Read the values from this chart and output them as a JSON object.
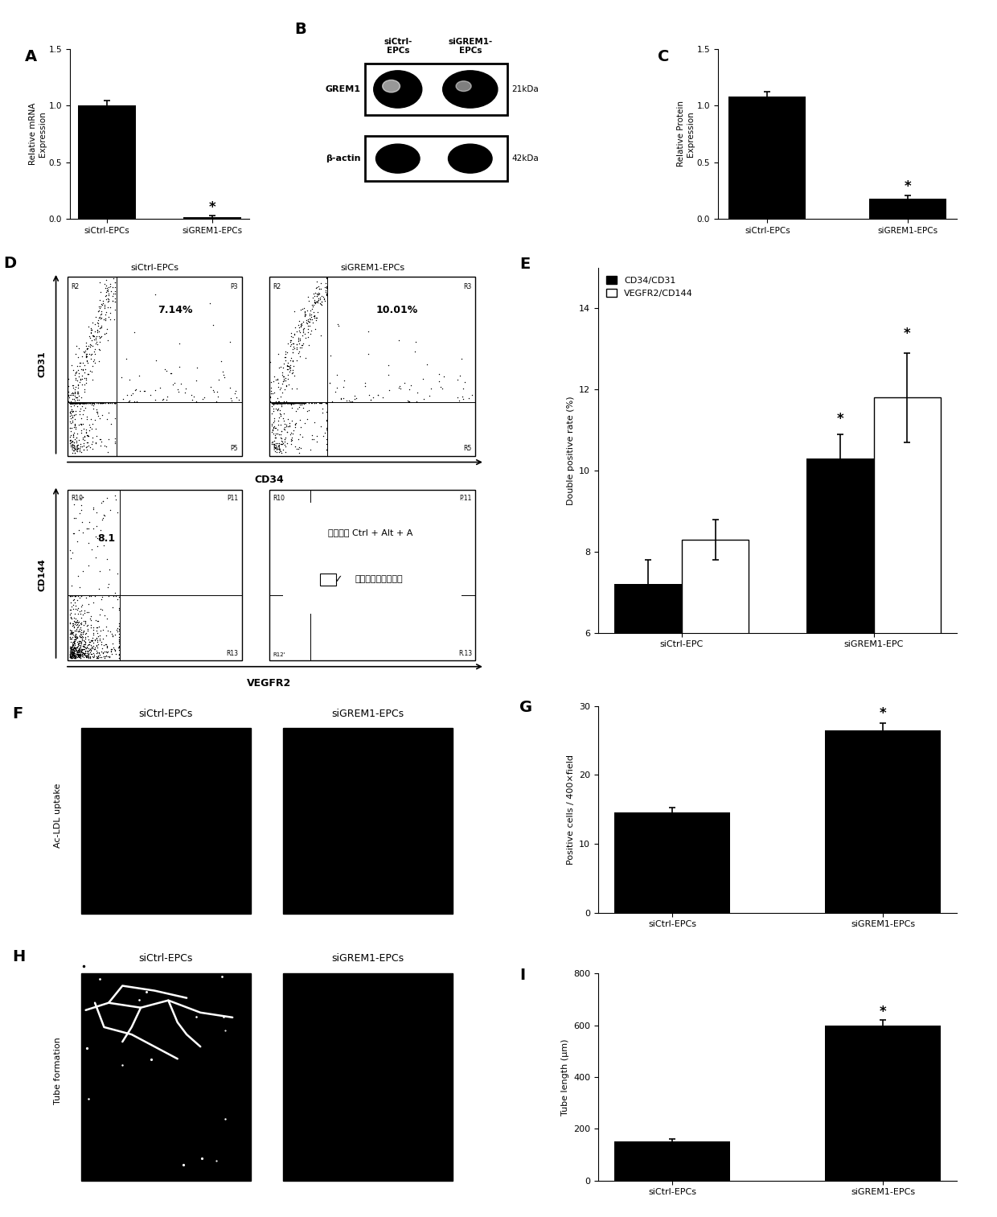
{
  "panel_A": {
    "categories": [
      "siCtrl-EPCs",
      "siGREM1-EPCs"
    ],
    "values": [
      1.0,
      0.02
    ],
    "errors": [
      0.04,
      0.01
    ],
    "ylabel": "Relative mRNA\nExpression",
    "ylim": [
      0,
      1.5
    ],
    "yticks": [
      0.0,
      0.5,
      1.0,
      1.5
    ],
    "bar_color": "#000000"
  },
  "panel_C": {
    "categories": [
      "siCtrl-EPCs",
      "siGREM1-EPCs"
    ],
    "values": [
      1.08,
      0.18
    ],
    "errors": [
      0.04,
      0.03
    ],
    "ylabel": "Relative Protein\nExpression",
    "ylim": [
      0,
      1.5
    ],
    "yticks": [
      0.0,
      0.5,
      1.0,
      1.5
    ],
    "bar_color": "#000000"
  },
  "panel_E": {
    "categories": [
      "siCtrl-EPC",
      "siGREM1-EPC"
    ],
    "values_black": [
      7.2,
      10.3
    ],
    "errors_black": [
      0.6,
      0.6
    ],
    "values_white": [
      8.3,
      11.8
    ],
    "errors_white": [
      0.5,
      1.1
    ],
    "ylabel": "Double positive rate (%)",
    "ylim": [
      6,
      15
    ],
    "yticks": [
      6,
      8,
      10,
      12,
      14
    ],
    "legend_black": "CD34/CD31",
    "legend_white": "VEGFR2/CD144"
  },
  "panel_G": {
    "categories": [
      "siCtrl-EPCs",
      "siGREM1-EPCs"
    ],
    "values": [
      14.5,
      26.5
    ],
    "errors": [
      0.8,
      1.0
    ],
    "ylabel": "Positive cells / 400×field",
    "ylim": [
      0,
      30
    ],
    "yticks": [
      0,
      10,
      20,
      30
    ],
    "bar_color": "#000000"
  },
  "panel_I": {
    "categories": [
      "siCtrl-EPCs",
      "siGREM1-EPCs"
    ],
    "values": [
      150,
      600
    ],
    "errors": [
      12,
      22
    ],
    "ylabel": "Tube length (μm)",
    "ylim": [
      0,
      800
    ],
    "yticks": [
      0,
      200,
      400,
      600,
      800
    ],
    "bar_color": "#000000"
  },
  "colors": {
    "background": "#ffffff",
    "bar_black": "#000000",
    "bar_white": "#ffffff",
    "text": "#000000"
  }
}
